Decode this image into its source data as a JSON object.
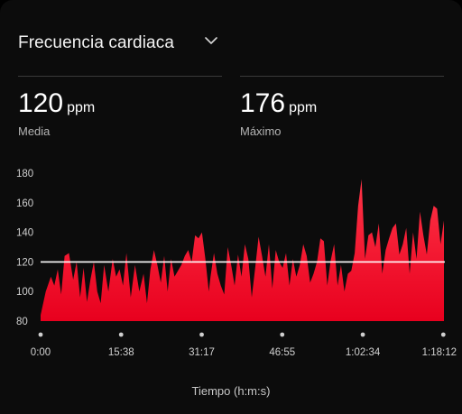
{
  "header": {
    "title": "Frecuencia cardiaca",
    "dropdown_icon": "chevron-down-icon"
  },
  "stats": {
    "average": {
      "value": "120",
      "unit": "ppm",
      "label": "Media"
    },
    "maximum": {
      "value": "176",
      "unit": "ppm",
      "label": "Máximo"
    }
  },
  "colors": {
    "fill_top": "#ff3447",
    "fill_bottom": "#e8001e",
    "reference_line": "#ffffff"
  },
  "chart_data": {
    "type": "area",
    "xlabel": "Tiempo (h:m:s)",
    "ylabel": "",
    "ylim": [
      80,
      180
    ],
    "y_ticks": [
      "80",
      "100",
      "120",
      "140",
      "160",
      "180"
    ],
    "x_ticks": [
      "0:00",
      "15:38",
      "31:17",
      "46:55",
      "1:02:34",
      "1:18:12"
    ],
    "x_tick_seconds": [
      0,
      938,
      1877,
      2815,
      3754,
      4692
    ],
    "xlim_seconds": [
      0,
      4710
    ],
    "reference_line": 120,
    "grid": false,
    "series": [
      {
        "x": [
          0,
          60,
          120,
          160,
          200,
          240,
          280,
          330,
          380,
          420,
          460,
          500,
          540,
          580,
          620,
          660,
          700,
          740,
          790,
          840,
          880,
          920,
          960,
          1000,
          1050,
          1100,
          1150,
          1200,
          1240,
          1280,
          1320,
          1360,
          1400,
          1440,
          1480,
          1520,
          1560,
          1600,
          1640,
          1680,
          1720,
          1760,
          1800,
          1840,
          1880,
          1920,
          1960,
          1980,
          2020,
          2060,
          2100,
          2140,
          2180,
          2220,
          2260,
          2300,
          2340,
          2380,
          2420,
          2460,
          2500,
          2540,
          2580,
          2620,
          2660,
          2700,
          2740,
          2780,
          2820,
          2860,
          2900,
          2940,
          2980,
          3020,
          3060,
          3100,
          3140,
          3180,
          3220,
          3260,
          3300,
          3340,
          3380,
          3420,
          3460,
          3500,
          3540,
          3580,
          3620,
          3660,
          3700,
          3740,
          3780,
          3820,
          3860,
          3900,
          3940,
          3980,
          4020,
          4060,
          4100,
          4140,
          4180,
          4220,
          4260,
          4300,
          4340,
          4380,
          4420,
          4460,
          4500,
          4540,
          4580,
          4620,
          4660,
          4700
        ],
        "y": [
          84,
          100,
          110,
          104,
          115,
          98,
          124,
          126,
          108,
          120,
          96,
          116,
          93,
          108,
          120,
          100,
          92,
          118,
          100,
          122,
          110,
          115,
          104,
          126,
          96,
          118,
          100,
          112,
          92,
          115,
          128,
          118,
          106,
          124,
          100,
          122,
          110,
          114,
          118,
          124,
          128,
          120,
          138,
          136,
          140,
          122,
          100,
          110,
          126,
          112,
          104,
          98,
          130,
          118,
          104,
          125,
          110,
          132,
          122,
          96,
          116,
          137,
          124,
          110,
          132,
          102,
          128,
          120,
          116,
          126,
          104,
          122,
          110,
          118,
          132,
          124,
          106,
          112,
          120,
          136,
          134,
          104,
          121,
          132,
          104,
          118,
          100,
          112,
          114,
          126,
          158,
          176,
          122,
          138,
          140,
          130,
          146,
          112,
          128,
          136,
          143,
          146,
          125,
          132,
          143,
          112,
          140,
          122,
          154,
          138,
          125,
          148,
          158,
          156,
          132,
          148
        ]
      }
    ]
  }
}
